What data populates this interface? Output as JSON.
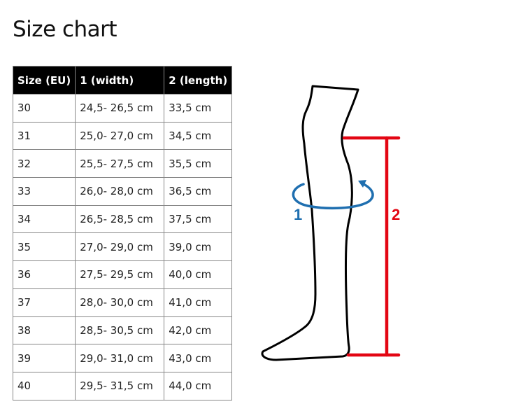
{
  "title": "Size chart",
  "table": {
    "headers": [
      "Size (EU)",
      "1 (width)",
      "2 (length)"
    ],
    "rows": [
      [
        "30",
        "24,5- 26,5 cm",
        "33,5 cm"
      ],
      [
        "31",
        "25,0- 27,0 cm",
        "34,5 cm"
      ],
      [
        "32",
        "25,5- 27,5 cm",
        "35,5 cm"
      ],
      [
        "33",
        "26,0- 28,0 cm",
        "36,5 cm"
      ],
      [
        "34",
        "26,5- 28,5 cm",
        "37,5 cm"
      ],
      [
        "35",
        "27,0- 29,0 cm",
        "39,0 cm"
      ],
      [
        "36",
        "27,5- 29,5 cm",
        "40,0 cm"
      ],
      [
        "37",
        "28,0- 30,0 cm",
        "41,0 cm"
      ],
      [
        "38",
        "28,5- 30,5 cm",
        "42,0 cm"
      ],
      [
        "39",
        "29,0- 31,0 cm",
        "43,0 cm"
      ],
      [
        "40",
        "29,5- 31,5 cm",
        "44,0 cm"
      ]
    ]
  },
  "diagram": {
    "width_label": "1",
    "length_label": "2",
    "colors": {
      "width": "#1f6fb0",
      "length": "#e30613",
      "outline": "#000000"
    }
  }
}
